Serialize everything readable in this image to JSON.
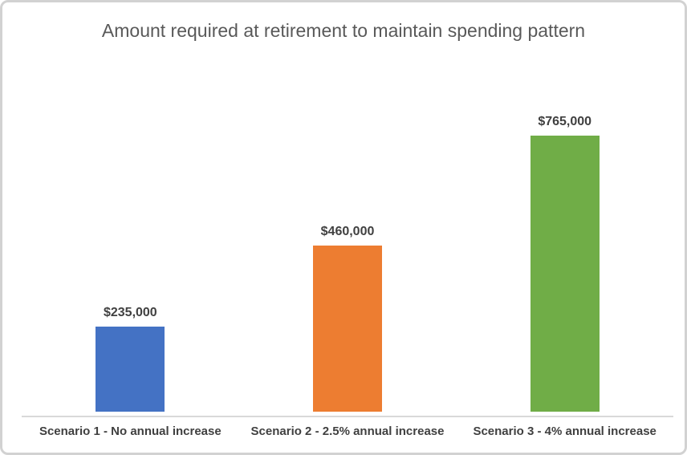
{
  "chart_data": {
    "type": "bar",
    "title": "Amount required at retirement to maintain spending pattern",
    "categories": [
      "Scenario 1 - No annual increase",
      "Scenario 2 - 2.5% annual increase",
      "Scenario 3 - 4% annual increase"
    ],
    "values": [
      235000,
      460000,
      765000
    ],
    "data_labels": [
      "$235,000",
      "$460,000",
      "$765,000"
    ],
    "bar_colors": [
      "#4472C4",
      "#ED7D31",
      "#70AD47"
    ],
    "xlabel": "",
    "ylabel": "",
    "ylim": [
      0,
      765000
    ],
    "grid": false,
    "legend": "none",
    "colors": {
      "title_text": "#595959",
      "data_label_text": "#404040",
      "category_label_text": "#404040",
      "axis_line": "#d9d9d9",
      "card_border": "#d2d2d2",
      "background": "#ffffff"
    }
  }
}
